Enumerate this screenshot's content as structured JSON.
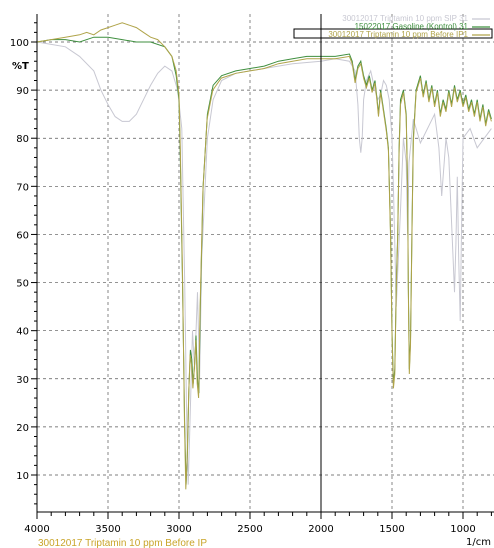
{
  "chart_data": {
    "type": "line",
    "xlabel": "1/cm",
    "ylabel": "%T",
    "xlim": [
      4000,
      800
    ],
    "ylim": [
      0,
      106
    ],
    "x_ticks": [
      4000,
      3500,
      3000,
      2500,
      2000,
      1500,
      1000
    ],
    "x_tick_labels": [
      "4000",
      "3500",
      "3000",
      "2500",
      "2000",
      "1500",
      "1000"
    ],
    "y_ticks": [
      10,
      20,
      30,
      40,
      50,
      60,
      70,
      80,
      90,
      100
    ],
    "y_tick_labels": [
      "10",
      "20",
      "30",
      "40",
      "50",
      "60",
      "70",
      "80",
      "90",
      "100"
    ],
    "grid": true,
    "cursor_x": 2000,
    "legend_placement": "top-right",
    "footer_label": "30012017 Triptamin 10 ppm Before IP",
    "series": [
      {
        "name": "30012017 Triptamin 10 ppm SIP 31",
        "color": "#c8c8d2",
        "points": [
          [
            4000,
            100
          ],
          [
            3900,
            99.5
          ],
          [
            3800,
            99
          ],
          [
            3700,
            97
          ],
          [
            3600,
            94
          ],
          [
            3550,
            90
          ],
          [
            3500,
            87
          ],
          [
            3450,
            84.5
          ],
          [
            3400,
            83.5
          ],
          [
            3350,
            83.5
          ],
          [
            3300,
            85
          ],
          [
            3250,
            88
          ],
          [
            3200,
            91
          ],
          [
            3150,
            93.5
          ],
          [
            3100,
            95
          ],
          [
            3050,
            94
          ],
          [
            3010,
            90
          ],
          [
            2980,
            82
          ],
          [
            2960,
            50
          ],
          [
            2945,
            20
          ],
          [
            2935,
            8
          ],
          [
            2925,
            18
          ],
          [
            2905,
            40
          ],
          [
            2890,
            32
          ],
          [
            2870,
            48
          ],
          [
            2855,
            30
          ],
          [
            2840,
            55
          ],
          [
            2800,
            80
          ],
          [
            2760,
            88
          ],
          [
            2700,
            92
          ],
          [
            2600,
            93.5
          ],
          [
            2400,
            94.5
          ],
          [
            2200,
            95.5
          ],
          [
            2000,
            96
          ],
          [
            1900,
            96.5
          ],
          [
            1800,
            96
          ],
          [
            1760,
            94
          ],
          [
            1740,
            87
          ],
          [
            1730,
            80
          ],
          [
            1720,
            77
          ],
          [
            1710,
            80
          ],
          [
            1700,
            88
          ],
          [
            1680,
            92
          ],
          [
            1650,
            94
          ],
          [
            1620,
            90
          ],
          [
            1600,
            88
          ],
          [
            1580,
            89
          ],
          [
            1560,
            92
          ],
          [
            1540,
            91
          ],
          [
            1520,
            88
          ],
          [
            1500,
            80
          ],
          [
            1490,
            70
          ],
          [
            1470,
            45
          ],
          [
            1460,
            52
          ],
          [
            1440,
            65
          ],
          [
            1420,
            80
          ],
          [
            1400,
            75
          ],
          [
            1390,
            60
          ],
          [
            1380,
            75
          ],
          [
            1350,
            84
          ],
          [
            1300,
            79
          ],
          [
            1250,
            82
          ],
          [
            1200,
            85
          ],
          [
            1170,
            78
          ],
          [
            1150,
            68
          ],
          [
            1120,
            80
          ],
          [
            1100,
            76
          ],
          [
            1070,
            55
          ],
          [
            1060,
            48
          ],
          [
            1050,
            58
          ],
          [
            1040,
            72
          ],
          [
            1030,
            55
          ],
          [
            1020,
            42
          ],
          [
            1010,
            62
          ],
          [
            1000,
            80
          ],
          [
            950,
            82
          ],
          [
            900,
            78
          ],
          [
            850,
            80
          ],
          [
            800,
            82
          ]
        ]
      },
      {
        "name": "15022017 Gasoline (Kontrol) 31",
        "color": "#3f8f3f",
        "points": [
          [
            4000,
            100
          ],
          [
            3900,
            100.5
          ],
          [
            3800,
            100.5
          ],
          [
            3700,
            100
          ],
          [
            3600,
            101
          ],
          [
            3500,
            101
          ],
          [
            3400,
            100.5
          ],
          [
            3300,
            100
          ],
          [
            3200,
            100
          ],
          [
            3100,
            99
          ],
          [
            3050,
            97
          ],
          [
            3020,
            93
          ],
          [
            3000,
            88
          ],
          [
            2990,
            75
          ],
          [
            2975,
            50
          ],
          [
            2960,
            20
          ],
          [
            2950,
            8
          ],
          [
            2940,
            15
          ],
          [
            2930,
            28
          ],
          [
            2920,
            36
          ],
          [
            2910,
            34
          ],
          [
            2900,
            29
          ],
          [
            2890,
            33
          ],
          [
            2880,
            39
          ],
          [
            2870,
            30
          ],
          [
            2860,
            27
          ],
          [
            2850,
            45
          ],
          [
            2830,
            70
          ],
          [
            2800,
            85
          ],
          [
            2760,
            91
          ],
          [
            2700,
            93
          ],
          [
            2600,
            94
          ],
          [
            2500,
            94.5
          ],
          [
            2400,
            95
          ],
          [
            2300,
            96
          ],
          [
            2200,
            96.5
          ],
          [
            2100,
            97
          ],
          [
            2000,
            97
          ],
          [
            1900,
            97
          ],
          [
            1800,
            97.5
          ],
          [
            1780,
            96
          ],
          [
            1760,
            92
          ],
          [
            1740,
            95
          ],
          [
            1720,
            96
          ],
          [
            1700,
            93
          ],
          [
            1680,
            91
          ],
          [
            1660,
            93
          ],
          [
            1640,
            90
          ],
          [
            1620,
            92
          ],
          [
            1605,
            88
          ],
          [
            1595,
            85
          ],
          [
            1580,
            90
          ],
          [
            1560,
            86
          ],
          [
            1540,
            82
          ],
          [
            1525,
            78
          ],
          [
            1510,
            60
          ],
          [
            1500,
            40
          ],
          [
            1490,
            29
          ],
          [
            1480,
            32
          ],
          [
            1470,
            50
          ],
          [
            1460,
            60
          ],
          [
            1450,
            78
          ],
          [
            1440,
            88
          ],
          [
            1420,
            90
          ],
          [
            1400,
            85
          ],
          [
            1390,
            70
          ],
          [
            1385,
            50
          ],
          [
            1378,
            32
          ],
          [
            1370,
            38
          ],
          [
            1360,
            60
          ],
          [
            1350,
            80
          ],
          [
            1330,
            90
          ],
          [
            1300,
            93
          ],
          [
            1280,
            89
          ],
          [
            1260,
            92
          ],
          [
            1240,
            88
          ],
          [
            1220,
            91
          ],
          [
            1200,
            87
          ],
          [
            1180,
            90
          ],
          [
            1160,
            85
          ],
          [
            1140,
            88
          ],
          [
            1120,
            86
          ],
          [
            1100,
            90
          ],
          [
            1080,
            87
          ],
          [
            1060,
            91
          ],
          [
            1040,
            88
          ],
          [
            1020,
            90
          ],
          [
            1000,
            87
          ],
          [
            980,
            89
          ],
          [
            960,
            86
          ],
          [
            940,
            88
          ],
          [
            920,
            85
          ],
          [
            900,
            88
          ],
          [
            880,
            84
          ],
          [
            860,
            87
          ],
          [
            840,
            83
          ],
          [
            820,
            86
          ],
          [
            800,
            84
          ]
        ]
      },
      {
        "name": "30012017 Triptamin 10 ppm Before IP1",
        "color": "#b0a44a",
        "points": [
          [
            4000,
            100
          ],
          [
            3900,
            100.5
          ],
          [
            3800,
            101
          ],
          [
            3700,
            101.5
          ],
          [
            3650,
            102
          ],
          [
            3600,
            101.5
          ],
          [
            3550,
            102.5
          ],
          [
            3500,
            103
          ],
          [
            3450,
            103.5
          ],
          [
            3400,
            104
          ],
          [
            3350,
            103.5
          ],
          [
            3300,
            103
          ],
          [
            3250,
            102
          ],
          [
            3200,
            101
          ],
          [
            3150,
            100.5
          ],
          [
            3100,
            99
          ],
          [
            3050,
            97
          ],
          [
            3020,
            94
          ],
          [
            3000,
            89
          ],
          [
            2990,
            77
          ],
          [
            2975,
            52
          ],
          [
            2962,
            22
          ],
          [
            2952,
            7
          ],
          [
            2942,
            14
          ],
          [
            2932,
            27
          ],
          [
            2922,
            35
          ],
          [
            2912,
            33
          ],
          [
            2902,
            28
          ],
          [
            2892,
            32
          ],
          [
            2882,
            38
          ],
          [
            2872,
            29
          ],
          [
            2862,
            26
          ],
          [
            2852,
            44
          ],
          [
            2832,
            69
          ],
          [
            2802,
            84
          ],
          [
            2762,
            90
          ],
          [
            2702,
            92.5
          ],
          [
            2600,
            93.5
          ],
          [
            2500,
            94
          ],
          [
            2400,
            94.5
          ],
          [
            2300,
            95.5
          ],
          [
            2200,
            96
          ],
          [
            2100,
            96.5
          ],
          [
            2000,
            96.5
          ],
          [
            1900,
            96.5
          ],
          [
            1800,
            97
          ],
          [
            1780,
            95.5
          ],
          [
            1760,
            91.5
          ],
          [
            1740,
            94.5
          ],
          [
            1720,
            95.5
          ],
          [
            1700,
            92.5
          ],
          [
            1680,
            90.5
          ],
          [
            1660,
            92.5
          ],
          [
            1640,
            89.5
          ],
          [
            1620,
            91.5
          ],
          [
            1605,
            87.5
          ],
          [
            1595,
            84.5
          ],
          [
            1580,
            89.5
          ],
          [
            1560,
            85.5
          ],
          [
            1540,
            81.5
          ],
          [
            1525,
            77.5
          ],
          [
            1510,
            59
          ],
          [
            1500,
            39
          ],
          [
            1490,
            28
          ],
          [
            1480,
            31
          ],
          [
            1470,
            49
          ],
          [
            1460,
            59
          ],
          [
            1450,
            77
          ],
          [
            1440,
            87
          ],
          [
            1420,
            89.5
          ],
          [
            1400,
            84.5
          ],
          [
            1390,
            69
          ],
          [
            1385,
            49
          ],
          [
            1378,
            31
          ],
          [
            1370,
            37
          ],
          [
            1360,
            59
          ],
          [
            1350,
            79
          ],
          [
            1330,
            89.5
          ],
          [
            1300,
            92.5
          ],
          [
            1280,
            88.5
          ],
          [
            1260,
            91.5
          ],
          [
            1240,
            87.5
          ],
          [
            1220,
            90.5
          ],
          [
            1200,
            86.5
          ],
          [
            1180,
            89.5
          ],
          [
            1160,
            84.5
          ],
          [
            1140,
            87.5
          ],
          [
            1120,
            85.5
          ],
          [
            1100,
            89.5
          ],
          [
            1080,
            86.5
          ],
          [
            1060,
            90.5
          ],
          [
            1040,
            87.5
          ],
          [
            1020,
            89.5
          ],
          [
            1000,
            86.5
          ],
          [
            980,
            88.5
          ],
          [
            960,
            85.5
          ],
          [
            940,
            87.5
          ],
          [
            920,
            84.5
          ],
          [
            900,
            87.5
          ],
          [
            880,
            83.5
          ],
          [
            860,
            86.5
          ],
          [
            840,
            82.5
          ],
          [
            820,
            85.5
          ],
          [
            800,
            83.5
          ]
        ]
      }
    ]
  }
}
